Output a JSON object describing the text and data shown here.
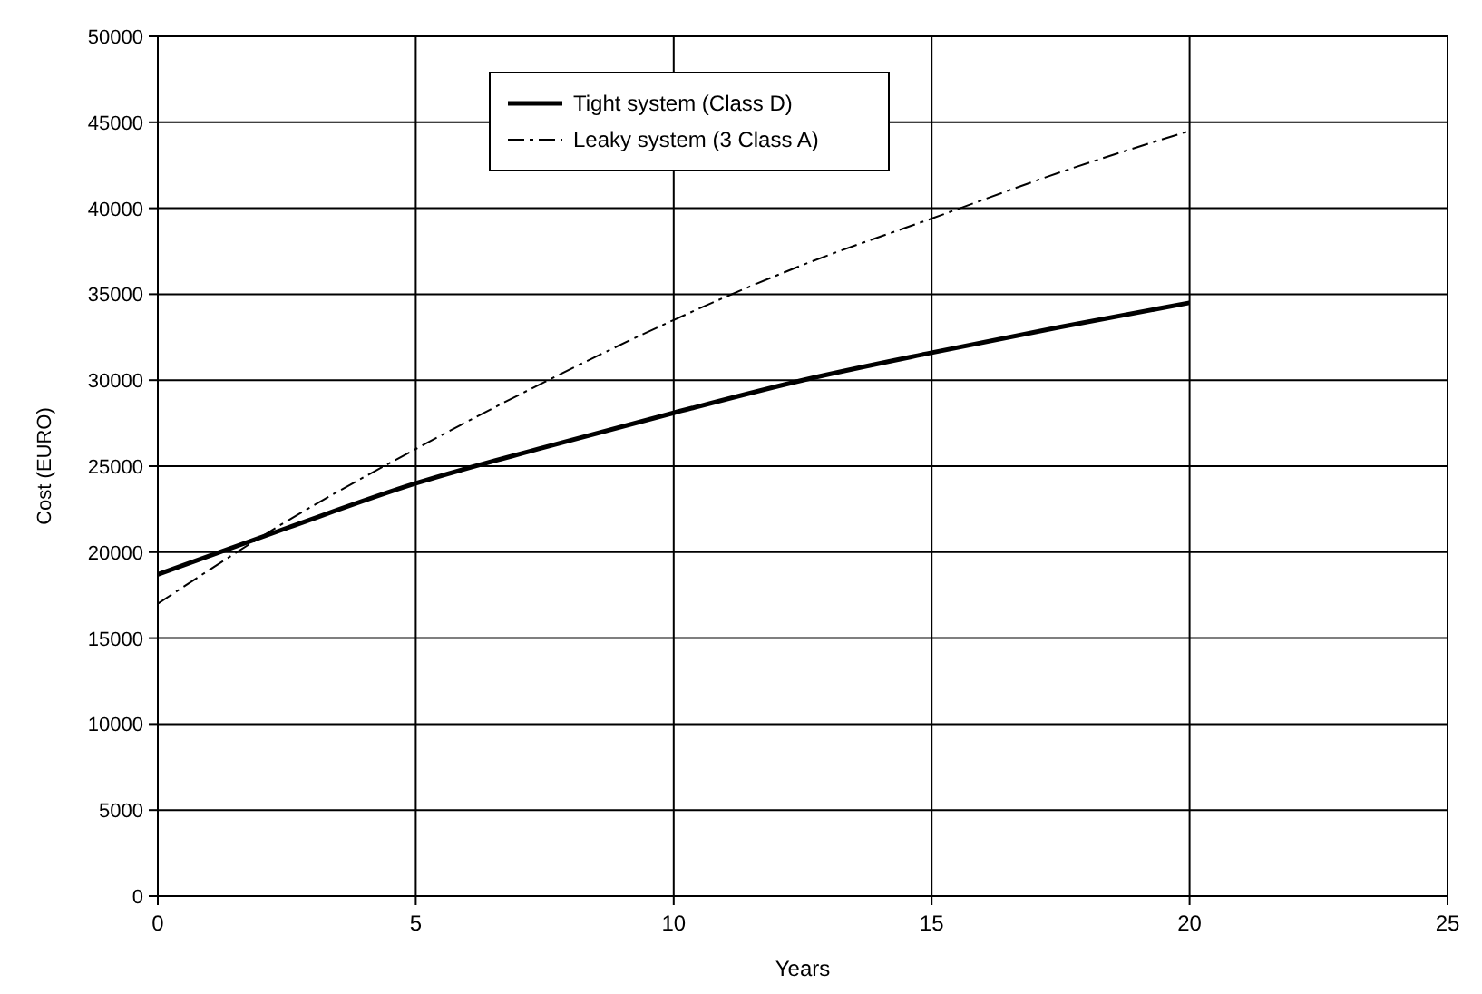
{
  "chart_data": {
    "type": "line",
    "xlabel": "Years",
    "ylabel": "Cost (EURO)",
    "x": [
      0,
      2.5,
      5,
      7.5,
      10,
      12.5,
      15,
      17.5,
      20
    ],
    "series": [
      {
        "name": "Tight system (Class D)",
        "color": "#000000",
        "line_style": "solid",
        "values": [
          18700,
          21400,
          24000,
          26100,
          28100,
          30000,
          31600,
          33100,
          34500
        ]
      },
      {
        "name": "Leaky system (3 Class A)",
        "color": "#000000",
        "line_style": "dashed",
        "values": [
          17000,
          21800,
          26000,
          29900,
          33500,
          36700,
          39400,
          42100,
          44500
        ]
      }
    ],
    "xlim": [
      0,
      25
    ],
    "xticks": [
      0,
      5,
      10,
      15,
      20,
      25
    ],
    "ylim": [
      0,
      50000
    ],
    "yticks": [
      0,
      5000,
      10000,
      15000,
      20000,
      25000,
      30000,
      35000,
      40000,
      45000,
      50000
    ],
    "grid": true,
    "legend": "top",
    "marker": "none"
  }
}
